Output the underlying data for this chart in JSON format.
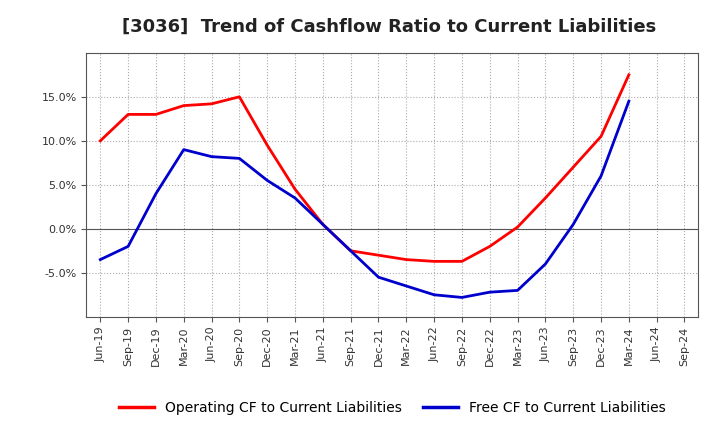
{
  "title": "[3036]  Trend of Cashflow Ratio to Current Liabilities",
  "x_labels": [
    "Jun-19",
    "Sep-19",
    "Dec-19",
    "Mar-20",
    "Jun-20",
    "Sep-20",
    "Dec-20",
    "Mar-21",
    "Jun-21",
    "Sep-21",
    "Dec-21",
    "Mar-22",
    "Jun-22",
    "Sep-22",
    "Dec-22",
    "Mar-23",
    "Jun-23",
    "Sep-23",
    "Dec-23",
    "Mar-24",
    "Jun-24",
    "Sep-24"
  ],
  "op_x": [
    0,
    1,
    2,
    3,
    4,
    5,
    6,
    7,
    8,
    9,
    10,
    11,
    12,
    13,
    14,
    15,
    16,
    17,
    18,
    19
  ],
  "op_y": [
    10.0,
    13.0,
    13.0,
    14.0,
    14.2,
    15.0,
    9.5,
    4.5,
    0.5,
    -2.5,
    -3.0,
    -3.5,
    -3.7,
    -3.7,
    -2.0,
    0.2,
    3.5,
    7.0,
    10.5,
    17.5
  ],
  "free_x": [
    0,
    1,
    2,
    3,
    4,
    5,
    6,
    7,
    8,
    9,
    10,
    11,
    12,
    13,
    14,
    15,
    16,
    17,
    18,
    19
  ],
  "free_y": [
    -3.5,
    -2.0,
    4.0,
    9.0,
    8.2,
    8.0,
    5.5,
    3.5,
    0.5,
    -2.5,
    -5.5,
    -6.5,
    -7.5,
    -7.8,
    -7.2,
    -7.0,
    -4.0,
    0.5,
    6.0,
    14.5
  ],
  "operating_color": "#FF0000",
  "free_color": "#0000CC",
  "ylim": [
    -10,
    20
  ],
  "yticks": [
    -5.0,
    0.0,
    5.0,
    10.0,
    15.0
  ],
  "background_color": "#FFFFFF",
  "grid_color": "#AAAAAA",
  "title_fontsize": 13,
  "legend_fontsize": 10,
  "linewidth": 2.0
}
